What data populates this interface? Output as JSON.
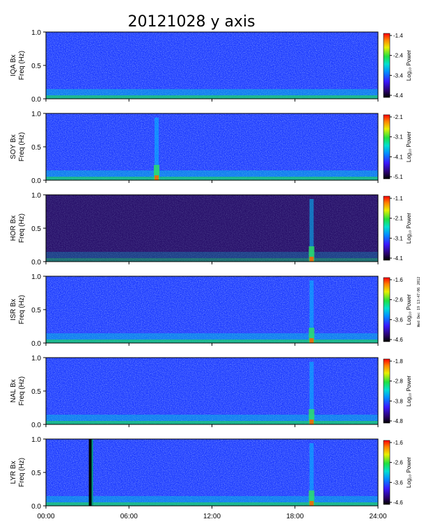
{
  "chart_data": {
    "type": "heatmap",
    "title": "20121028 y axis",
    "xlabel": "",
    "x_ticks": [
      "00:00",
      "06:00",
      "12:00",
      "18:00",
      "24:00"
    ],
    "x_range_hours": [
      0,
      24
    ],
    "y_range_hz": [
      0,
      1
    ],
    "y_ticks": [
      "0.0",
      "0.5",
      "1.0"
    ],
    "freq_label": "Freq (Hz)",
    "colorbar_label": "Log₁₀ Power",
    "colormap": [
      "#000000",
      "#2a006a",
      "#3a1aff",
      "#0090ff",
      "#00e0d0",
      "#20e040",
      "#e8f000",
      "#ff8000",
      "#ff0000"
    ],
    "side_stamp": "Wed Dec 19 13:47:06 2012",
    "panels": [
      {
        "station": "IQA Bx",
        "cbar_ticks": [
          -1.4,
          -2.4,
          -3.4,
          -4.4
        ],
        "base": "#1e3cff",
        "bright_hours": [],
        "quiet": false
      },
      {
        "station": "SOY Bx",
        "cbar_ticks": [
          -2.1,
          -3.1,
          -4.1,
          -5.1
        ],
        "base": "#1e3cff",
        "bright_hours": [
          8.0
        ],
        "quiet": false
      },
      {
        "station": "HOR Bx",
        "cbar_ticks": [
          -1.1,
          -2.1,
          -3.1,
          -4.1
        ],
        "base": "#28106a",
        "bright_hours": [
          19.2
        ],
        "quiet": true
      },
      {
        "station": "ISR Bx",
        "cbar_ticks": [
          -1.6,
          -2.6,
          -3.6,
          -4.6
        ],
        "base": "#1e3cff",
        "bright_hours": [
          19.2
        ],
        "quiet": false
      },
      {
        "station": "NAL Bx",
        "cbar_ticks": [
          -1.8,
          -2.8,
          -3.8,
          -4.8
        ],
        "base": "#1e3cff",
        "bright_hours": [
          19.2
        ],
        "quiet": false
      },
      {
        "station": "LYR Bx",
        "cbar_ticks": [
          -1.6,
          -2.6,
          -3.6,
          -4.6
        ],
        "base": "#1e3cff",
        "bright_hours": [
          19.2
        ],
        "quiet": false,
        "gap_hours": [
          3.1,
          3.4
        ]
      }
    ]
  }
}
